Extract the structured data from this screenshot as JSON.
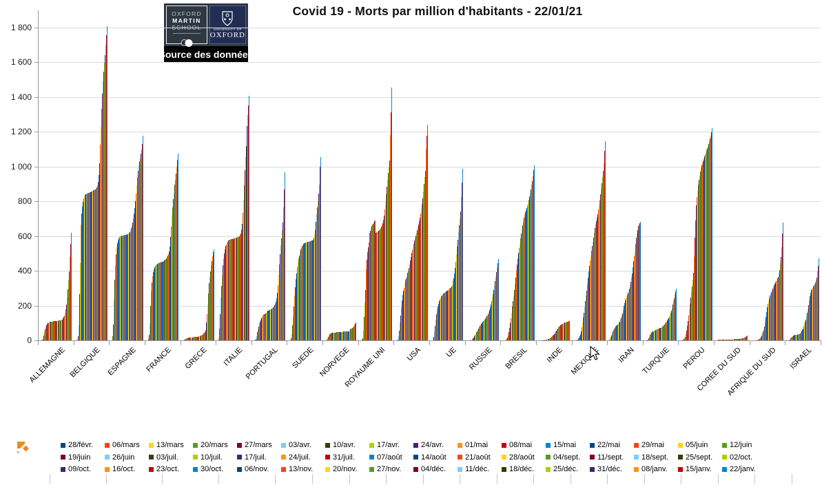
{
  "header": {
    "title": "Covid 19 - Morts par million d'habitants - 22/01/21",
    "logo": {
      "line1": "OXFORD",
      "line2": "MARTIN",
      "line3": "SCHOOL",
      "university": "UNIVERSITY OF",
      "oxford": "OXFORD",
      "source_label": "Source des données"
    }
  },
  "icons": {
    "sheet_logo": "orange-diamond-logo",
    "cursor": "arrow-pointer",
    "oxford_crest": "oxford-university-crest"
  },
  "chart_data": {
    "type": "bar",
    "title": "Covid 19 - Morts par million d'habitants - 22/01/21",
    "xlabel": "",
    "ylabel": "",
    "ylim": [
      0,
      1900
    ],
    "grid": true,
    "legend_position": "bottom",
    "ytick_values": [
      0,
      200,
      400,
      600,
      800,
      1000,
      1200,
      1400,
      1600,
      1800
    ],
    "ytick_labels": [
      "0",
      "200",
      "400",
      "600",
      "800",
      "1 000",
      "1 200",
      "1 400",
      "1 600",
      "1 800"
    ],
    "palette": [
      "#004586",
      "#FF420E",
      "#FFD320",
      "#579D1C",
      "#7E0021",
      "#83CAFF",
      "#314004",
      "#AECF00",
      "#4B1F6F",
      "#FF950E",
      "#C5000B",
      "#0084D1"
    ],
    "series_labels": [
      "28/févr.",
      "06/mars",
      "13/mars",
      "20/mars",
      "27/mars",
      "03/avr.",
      "10/avr.",
      "17/avr.",
      "24/avr.",
      "01/mai",
      "08/mai",
      "15/mai",
      "22/mai",
      "29/mai",
      "05/juin",
      "12/juin",
      "19/juin",
      "26/juin",
      "03/juil.",
      "10/juil.",
      "17/juil.",
      "24/juil.",
      "31/juil.",
      "07/août",
      "14/août",
      "21/août",
      "28/août",
      "04/sept.",
      "11/sept.",
      "18/sept.",
      "25/sept.",
      "02/oct.",
      "09/oct.",
      "16/oct.",
      "23/oct.",
      "30/oct.",
      "06/nov.",
      "13/nov.",
      "20/nov.",
      "27/nov.",
      "04/déc.",
      "11/déc.",
      "18/déc.",
      "25/déc.",
      "31/déc.",
      "08/janv.",
      "15/janv.",
      "22/janv."
    ],
    "categories": [
      "ALLEMAGNE",
      "BELGIQUE",
      "ESPAGNE",
      "FRANCE",
      "GRECE",
      "ITALIE",
      "PORTUGAL",
      "SUEDE",
      "NORVEGE",
      "ROYAUME UNI",
      "USA",
      "UE",
      "RUSSIE",
      "BRESIL",
      "INDE",
      "MEXIQUE",
      "IRAN",
      "TURQUIE",
      "PEROU",
      "COREE DU SUD",
      "AFRIQUE DU SUD",
      "ISRAEL"
    ],
    "values_by_category": {
      "ALLEMAGNE": [
        0,
        0,
        0,
        1,
        3,
        13,
        29,
        48,
        64,
        77,
        87,
        94,
        98,
        101,
        104,
        106,
        107,
        108,
        109,
        109,
        110,
        110,
        111,
        111,
        111,
        112,
        112,
        112,
        113,
        113,
        114,
        114,
        115,
        117,
        120,
        126,
        133,
        144,
        158,
        177,
        205,
        245,
        295,
        345,
        398,
        480,
        556,
        620
      ],
      "BELGIQUE": [
        0,
        0,
        0,
        3,
        25,
        88,
        264,
        445,
        570,
        660,
        730,
        770,
        795,
        815,
        828,
        835,
        840,
        843,
        845,
        846,
        847,
        848,
        850,
        852,
        854,
        857,
        860,
        862,
        864,
        866,
        869,
        873,
        880,
        892,
        912,
        950,
        1020,
        1125,
        1230,
        1330,
        1420,
        1490,
        1545,
        1595,
        1640,
        1700,
        1755,
        1805
      ],
      "ESPAGNE": [
        0,
        0,
        3,
        22,
        93,
        230,
        350,
        432,
        494,
        533,
        557,
        575,
        588,
        595,
        598,
        600,
        601,
        602,
        603,
        604,
        605,
        606,
        607,
        608,
        609,
        611,
        614,
        618,
        624,
        632,
        645,
        662,
        678,
        700,
        728,
        760,
        800,
        845,
        892,
        938,
        975,
        1005,
        1030,
        1052,
        1072,
        1098,
        1128,
        1175
      ],
      "FRANCE": [
        0,
        0,
        1,
        7,
        30,
        98,
        199,
        280,
        334,
        370,
        394,
        410,
        420,
        427,
        432,
        436,
        440,
        443,
        445,
        446,
        447,
        448,
        450,
        452,
        453,
        455,
        457,
        459,
        462,
        466,
        472,
        479,
        487,
        497,
        513,
        540,
        596,
        655,
        720,
        765,
        813,
        843,
        895,
        925,
        958,
        1000,
        1040,
        1075
      ],
      "GRECE": [
        0,
        0,
        0,
        0,
        3,
        5,
        8,
        10,
        12,
        13,
        14,
        14,
        15,
        16,
        17,
        17,
        17,
        18,
        18,
        18,
        19,
        19,
        20,
        20,
        21,
        22,
        23,
        25,
        27,
        29,
        31,
        36,
        39,
        45,
        48,
        59,
        103,
        152,
        207,
        271,
        330,
        365,
        397,
        430,
        455,
        485,
        506,
        522
      ],
      "ITALIE": [
        0,
        3,
        21,
        67,
        152,
        244,
        313,
        378,
        431,
        469,
        501,
        525,
        542,
        552,
        561,
        568,
        574,
        577,
        578,
        580,
        582,
        583,
        584,
        584,
        585,
        588,
        589,
        590,
        591,
        593,
        594,
        597,
        600,
        605,
        616,
        637,
        668,
        733,
        807,
        892,
        978,
        1053,
        1117,
        1178,
        1232,
        1294,
        1351,
        1407
      ],
      "PORTUGAL": [
        0,
        0,
        0,
        1,
        7,
        25,
        46,
        63,
        80,
        96,
        108,
        118,
        125,
        134,
        142,
        147,
        150,
        152,
        155,
        159,
        164,
        167,
        170,
        172,
        174,
        176,
        178,
        180,
        183,
        186,
        190,
        196,
        201,
        211,
        223,
        242,
        274,
        319,
        375,
        434,
        494,
        545,
        586,
        633,
        677,
        765,
        869,
        965
      ],
      "SUEDE": [
        0,
        0,
        0,
        2,
        10,
        35,
        86,
        135,
        195,
        256,
        307,
        352,
        386,
        420,
        448,
        471,
        487,
        510,
        523,
        530,
        543,
        548,
        554,
        557,
        559,
        561,
        562,
        564,
        565,
        566,
        568,
        569,
        571,
        572,
        573,
        574,
        580,
        592,
        611,
        633,
        683,
        726,
        763,
        800,
        843,
        895,
        997,
        1055
      ],
      "NORVEGE": [
        0,
        0,
        0,
        1,
        4,
        11,
        19,
        28,
        36,
        40,
        41,
        43,
        44,
        44,
        45,
        45,
        45,
        46,
        46,
        47,
        47,
        47,
        48,
        48,
        49,
        49,
        49,
        49,
        50,
        50,
        50,
        51,
        51,
        51,
        52,
        52,
        53,
        55,
        58,
        62,
        66,
        69,
        73,
        77,
        81,
        90,
        96,
        102
      ],
      "ROYAUME UNI": [
        0,
        0,
        0,
        3,
        11,
        54,
        133,
        217,
        290,
        409,
        465,
        506,
        536,
        563,
        599,
        617,
        632,
        646,
        656,
        664,
        671,
        678,
        684,
        690,
        620,
        622,
        624,
        627,
        630,
        634,
        639,
        645,
        652,
        661,
        673,
        692,
        718,
        754,
        796,
        840,
        883,
        923,
        961,
        998,
        1036,
        1180,
        1310,
        1455
      ],
      "USA": [
        0,
        0,
        0,
        1,
        5,
        22,
        57,
        102,
        144,
        189,
        229,
        260,
        286,
        303,
        327,
        344,
        358,
        370,
        387,
        402,
        418,
        436,
        459,
        480,
        502,
        521,
        539,
        556,
        573,
        588,
        602,
        619,
        635,
        650,
        667,
        684,
        704,
        728,
        757,
        783,
        818,
        857,
        900,
        938,
        975,
        1103,
        1177,
        1240
      ],
      "UE": [
        0,
        0,
        1,
        5,
        20,
        50,
        85,
        120,
        150,
        175,
        195,
        212,
        226,
        237,
        246,
        253,
        259,
        264,
        268,
        272,
        275,
        278,
        281,
        284,
        287,
        290,
        293,
        296,
        300,
        304,
        309,
        316,
        326,
        340,
        358,
        383,
        415,
        453,
        494,
        537,
        580,
        622,
        663,
        702,
        740,
        825,
        908,
        988
      ],
      "RUSSIE": [
        0,
        0,
        0,
        0,
        0,
        0,
        1,
        2,
        3,
        7,
        10,
        16,
        22,
        30,
        38,
        46,
        53,
        62,
        69,
        76,
        82,
        88,
        95,
        101,
        106,
        111,
        116,
        120,
        126,
        132,
        138,
        143,
        152,
        163,
        176,
        192,
        208,
        225,
        244,
        264,
        288,
        315,
        340,
        364,
        391,
        417,
        442,
        468
      ],
      "BRESIL": [
        0,
        0,
        0,
        0,
        0,
        2,
        5,
        10,
        17,
        28,
        47,
        70,
        99,
        128,
        160,
        193,
        225,
        258,
        291,
        325,
        361,
        399,
        435,
        470,
        504,
        532,
        558,
        586,
        613,
        638,
        661,
        683,
        704,
        721,
        736,
        750,
        762,
        776,
        790,
        808,
        828,
        848,
        869,
        894,
        917,
        948,
        980,
        1007
      ],
      "INDE": [
        0,
        0,
        0,
        0,
        0,
        0,
        0,
        0,
        1,
        1,
        1,
        2,
        3,
        4,
        5,
        7,
        9,
        11,
        13,
        16,
        19,
        22,
        26,
        30,
        35,
        40,
        45,
        50,
        56,
        62,
        68,
        74,
        80,
        83,
        86,
        90,
        93,
        96,
        99,
        101,
        103,
        104,
        105,
        106,
        108,
        109,
        110,
        111
      ],
      "MEXIQUE": [
        0,
        0,
        0,
        0,
        0,
        1,
        2,
        5,
        10,
        15,
        25,
        36,
        50,
        75,
        102,
        130,
        158,
        192,
        226,
        256,
        286,
        324,
        362,
        396,
        429,
        458,
        486,
        515,
        544,
        568,
        591,
        619,
        645,
        666,
        685,
        706,
        727,
        751,
        777,
        806,
        839,
        870,
        904,
        940,
        976,
        1017,
        1088,
        1145
      ],
      "IRAN": [
        0,
        4,
        10,
        19,
        28,
        38,
        50,
        58,
        66,
        72,
        78,
        82,
        86,
        91,
        96,
        102,
        109,
        119,
        129,
        141,
        155,
        175,
        197,
        213,
        228,
        240,
        252,
        263,
        273,
        285,
        298,
        316,
        337,
        360,
        385,
        419,
        456,
        487,
        517,
        555,
        592,
        615,
        634,
        648,
        659,
        667,
        675,
        682
      ],
      "TURQUIE": [
        0,
        0,
        0,
        0,
        1,
        5,
        12,
        21,
        31,
        38,
        44,
        48,
        51,
        53,
        55,
        57,
        58,
        60,
        62,
        63,
        65,
        66,
        68,
        70,
        71,
        72,
        74,
        78,
        82,
        87,
        92,
        97,
        103,
        109,
        115,
        121,
        128,
        136,
        145,
        157,
        172,
        188,
        206,
        224,
        242,
        264,
        283,
        296
      ],
      "PEROU": [
        0,
        0,
        0,
        0,
        1,
        3,
        7,
        13,
        21,
        36,
        57,
        82,
        110,
        143,
        179,
        211,
        244,
        276,
        310,
        348,
        388,
        480,
        589,
        690,
        778,
        825,
        863,
        897,
        924,
        948,
        969,
        989,
        1006,
        1020,
        1032,
        1044,
        1056,
        1068,
        1080,
        1092,
        1104,
        1116,
        1130,
        1145,
        1160,
        1178,
        1198,
        1222
      ],
      "COREE DU SUD": [
        0,
        1,
        1,
        2,
        3,
        3,
        4,
        4,
        5,
        5,
        5,
        5,
        5,
        5,
        5,
        6,
        6,
        6,
        6,
        6,
        6,
        6,
        6,
        6,
        6,
        6,
        6,
        7,
        7,
        7,
        8,
        8,
        8,
        8,
        9,
        9,
        9,
        10,
        10,
        11,
        11,
        12,
        13,
        15,
        18,
        21,
        24,
        26
      ],
      "AFRIQUE DU SUD": [
        0,
        0,
        0,
        0,
        0,
        0,
        0,
        1,
        1,
        2,
        3,
        5,
        7,
        10,
        13,
        20,
        28,
        38,
        50,
        64,
        81,
        106,
        135,
        163,
        190,
        212,
        228,
        243,
        257,
        268,
        277,
        287,
        296,
        307,
        318,
        326,
        333,
        341,
        349,
        357,
        366,
        384,
        405,
        442,
        480,
        536,
        615,
        676
      ],
      "ISRAEL": [
        0,
        0,
        0,
        0,
        1,
        4,
        11,
        16,
        21,
        25,
        27,
        29,
        30,
        31,
        32,
        33,
        33,
        34,
        35,
        37,
        40,
        46,
        54,
        61,
        69,
        83,
        98,
        109,
        120,
        138,
        157,
        177,
        202,
        228,
        252,
        273,
        290,
        297,
        303,
        310,
        317,
        324,
        332,
        345,
        361,
        395,
        428,
        473
      ]
    }
  }
}
